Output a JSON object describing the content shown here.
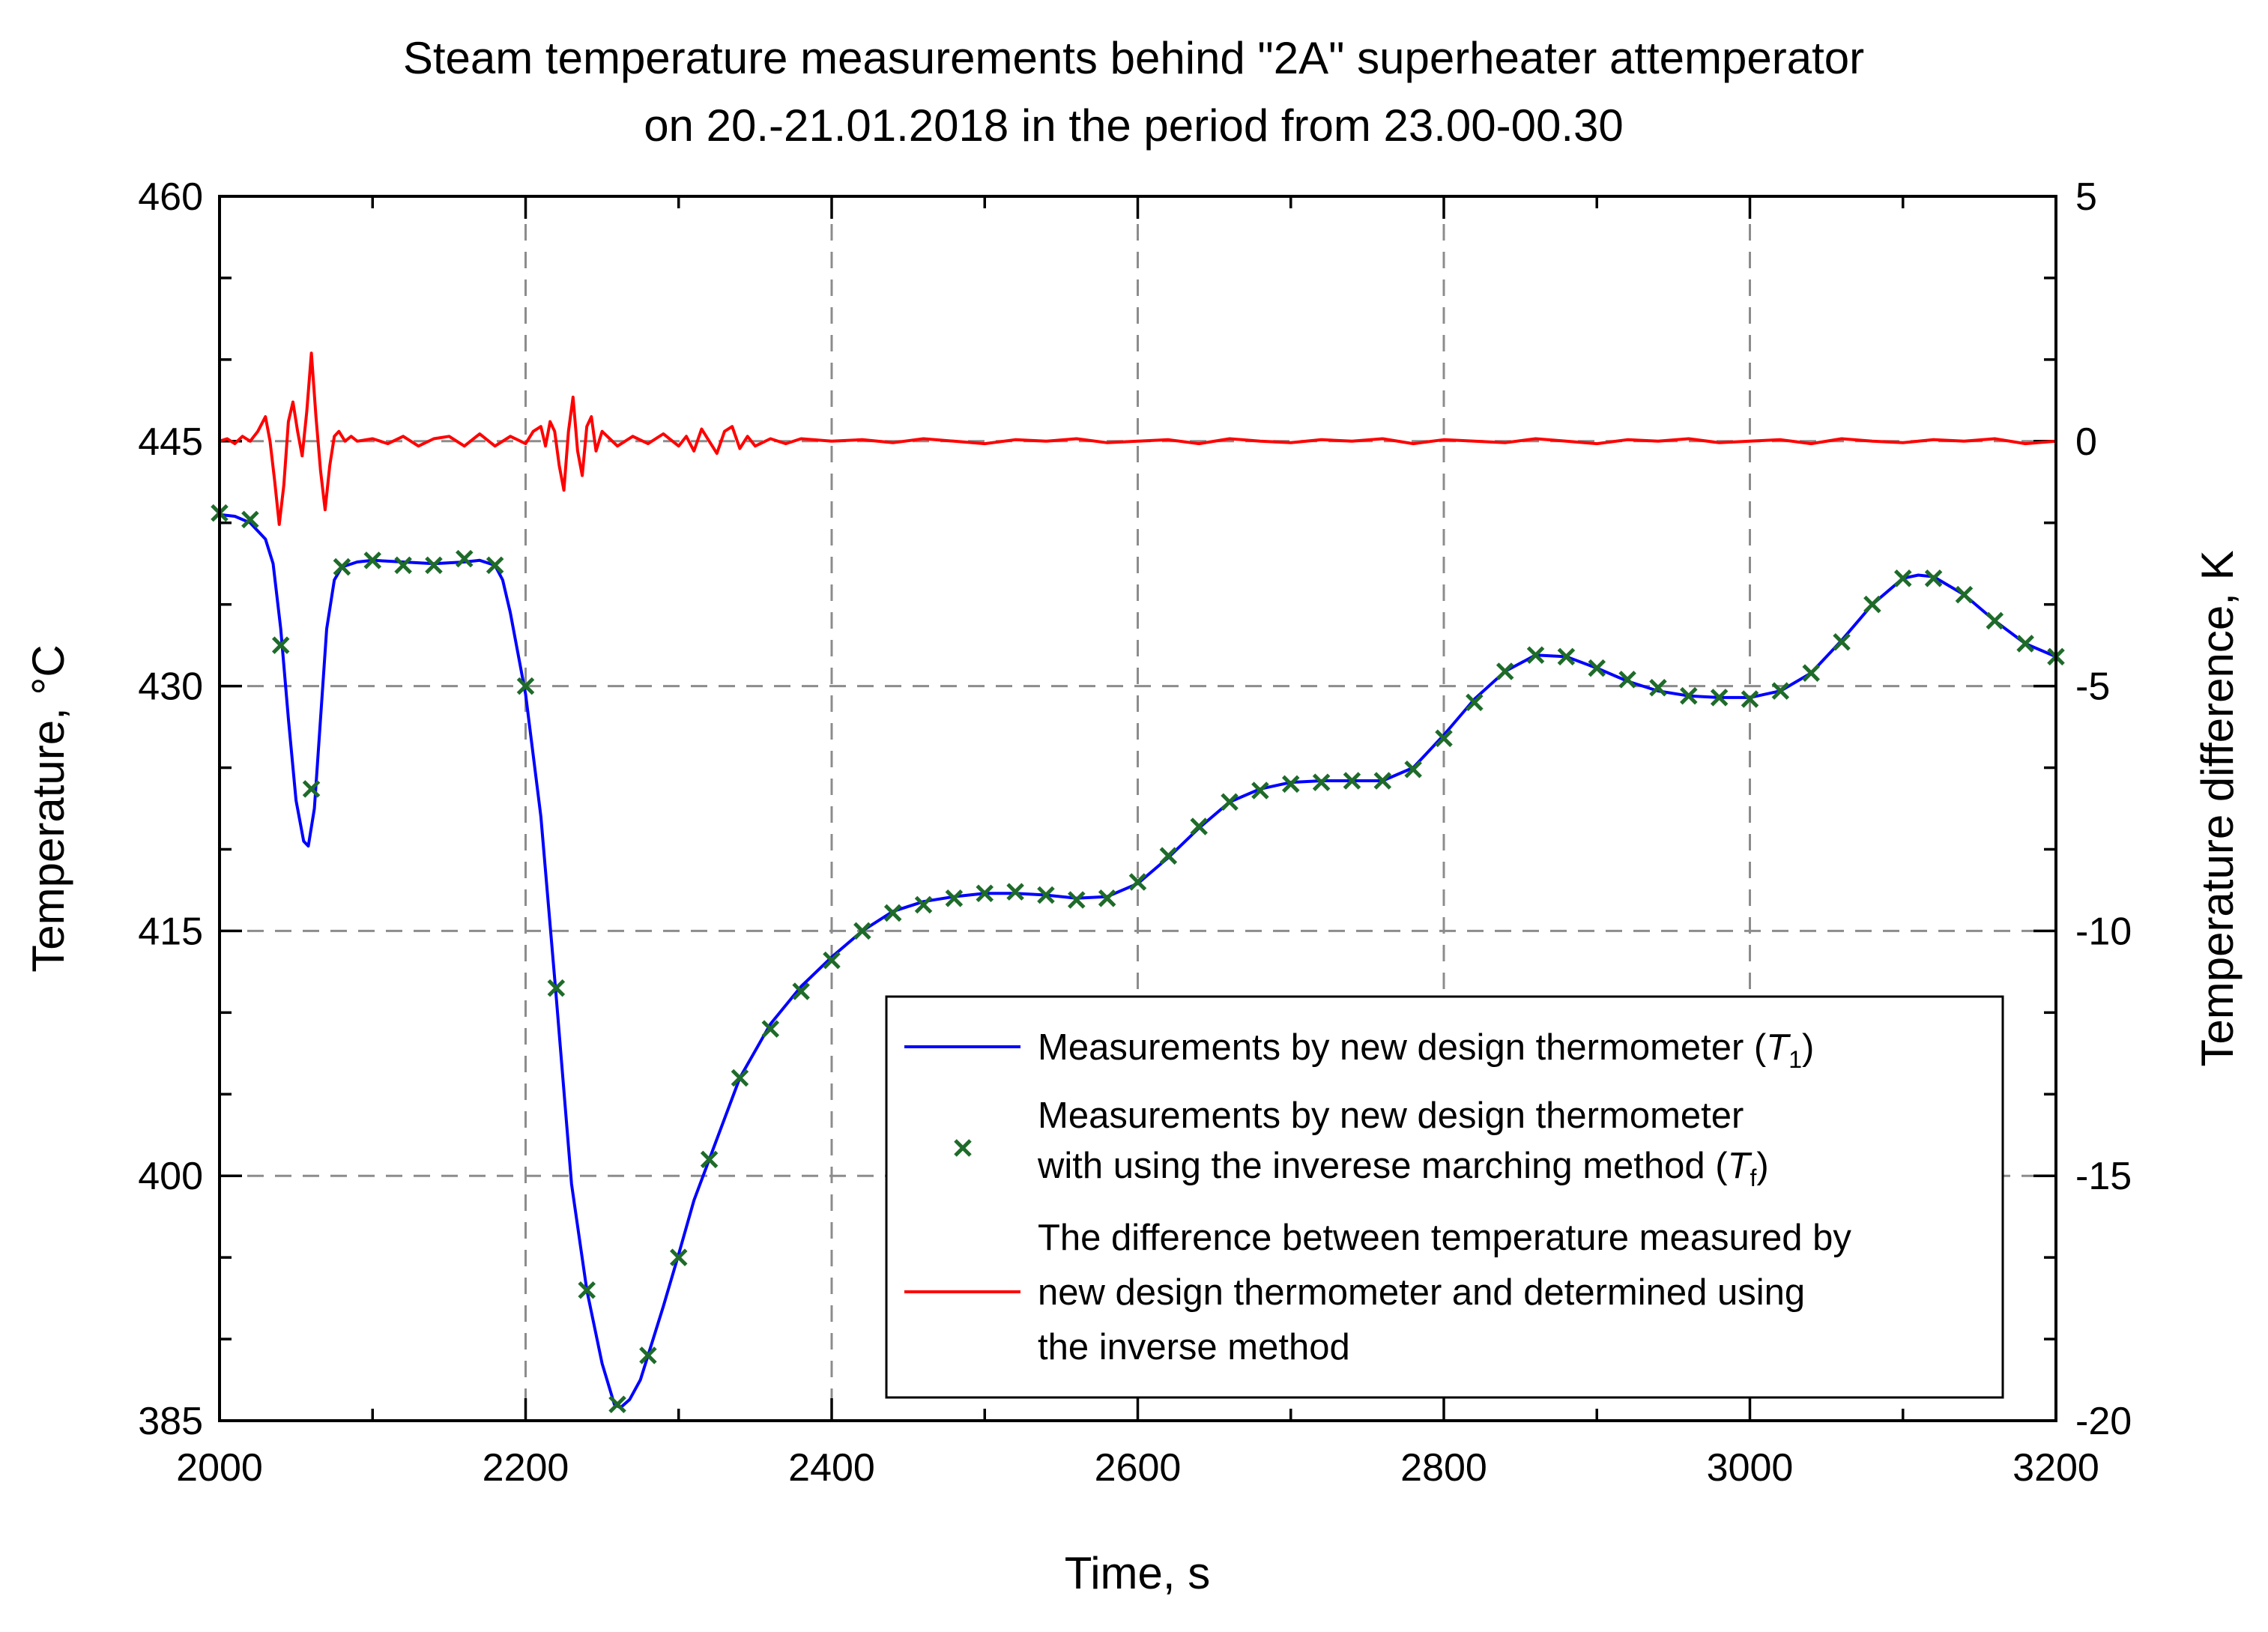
{
  "colors": {
    "t1_line": "#0000ff",
    "tf_marker": "#1f6b2a",
    "diff_line": "#ff0000",
    "grid": "#8c8c8c",
    "axis": "#000000"
  },
  "chart_data": {
    "type": "line",
    "title": [
      "Steam temperature measurements behind \"2A\" superheater attemperator",
      "on 20.-21.01.2018 in the period from 23.00-00.30"
    ],
    "xlabel": "Time, s",
    "ylabel_left": "Temperature, °C",
    "ylabel_right": "Temperature difference, K",
    "xlim": [
      2000,
      3200
    ],
    "ylim_left": [
      385,
      460
    ],
    "ylim_right": [
      -20,
      5
    ],
    "xticks": [
      2000,
      2200,
      2400,
      2600,
      2800,
      3000,
      3200
    ],
    "yticks_left": [
      385,
      400,
      415,
      430,
      445,
      460
    ],
    "yticks_right": [
      -20,
      -15,
      -10,
      -5,
      0,
      5
    ],
    "grid": "dashed",
    "legend_position": "lower-right",
    "legend": [
      {
        "label": "Measurements by new design thermometer (",
        "symbol": "T",
        "subscript": "1",
        "suffix": ")"
      },
      {
        "label_lines": [
          "Measurements by new design thermometer",
          "with using the inverese marching method ("
        ],
        "symbol": "T",
        "subscript": "f",
        "suffix": ")"
      },
      {
        "label_lines": [
          "The difference between temperature measured by",
          "new design thermometer and determined using",
          "the inverse method"
        ]
      }
    ],
    "series": [
      {
        "name": "T1",
        "kind": "line",
        "axis": "left",
        "x": [
          2000,
          2010,
          2020,
          2030,
          2035,
          2040,
          2045,
          2050,
          2055,
          2058,
          2062,
          2066,
          2070,
          2075,
          2080,
          2090,
          2100,
          2120,
          2140,
          2160,
          2170,
          2180,
          2185,
          2190,
          2195,
          2200,
          2210,
          2220,
          2230,
          2240,
          2250,
          2258,
          2262,
          2268,
          2275,
          2280,
          2290,
          2300,
          2310,
          2320,
          2330,
          2340,
          2360,
          2380,
          2400,
          2420,
          2440,
          2460,
          2480,
          2500,
          2520,
          2540,
          2560,
          2580,
          2600,
          2620,
          2640,
          2660,
          2680,
          2700,
          2720,
          2740,
          2760,
          2780,
          2800,
          2820,
          2840,
          2860,
          2880,
          2900,
          2920,
          2940,
          2960,
          2980,
          3000,
          3020,
          3040,
          3060,
          3080,
          3100,
          3110,
          3120,
          3140,
          3160,
          3180,
          3200
        ],
        "y": [
          440.5,
          440.4,
          440.0,
          439.0,
          437.5,
          433.5,
          428.0,
          423.0,
          420.5,
          420.2,
          422.5,
          428.0,
          433.5,
          436.5,
          437.3,
          437.6,
          437.7,
          437.6,
          437.5,
          437.6,
          437.7,
          437.4,
          436.5,
          434.5,
          432.0,
          429.5,
          422.0,
          411.0,
          399.5,
          393.0,
          388.5,
          386.0,
          385.8,
          386.3,
          387.5,
          389.0,
          392.0,
          395.2,
          398.5,
          401.0,
          403.5,
          406.0,
          409.3,
          411.6,
          413.4,
          415.0,
          416.2,
          416.8,
          417.1,
          417.3,
          417.3,
          417.2,
          417.0,
          417.1,
          417.9,
          419.5,
          421.3,
          422.9,
          423.7,
          424.1,
          424.2,
          424.2,
          424.2,
          425.0,
          427.0,
          429.2,
          430.9,
          431.9,
          431.8,
          431.1,
          430.3,
          429.7,
          429.4,
          429.3,
          429.3,
          429.7,
          430.8,
          432.8,
          435.0,
          436.6,
          436.8,
          436.7,
          435.6,
          434.0,
          432.6,
          431.8
        ]
      },
      {
        "name": "Tf",
        "kind": "scatter",
        "marker": "x",
        "axis": "left",
        "x": [
          2000,
          2020,
          2040,
          2060,
          2080,
          2100,
          2120,
          2140,
          2160,
          2180,
          2200,
          2220,
          2240,
          2260,
          2280,
          2300,
          2320,
          2340,
          2360,
          2380,
          2400,
          2420,
          2440,
          2460,
          2480,
          2500,
          2520,
          2540,
          2560,
          2580,
          2600,
          2620,
          2640,
          2660,
          2680,
          2700,
          2720,
          2740,
          2760,
          2780,
          2800,
          2820,
          2840,
          2860,
          2880,
          2900,
          2920,
          2940,
          2960,
          2980,
          3000,
          3020,
          3040,
          3060,
          3080,
          3100,
          3120,
          3140,
          3160,
          3180,
          3200
        ],
        "y": [
          440.6,
          440.2,
          432.5,
          423.7,
          437.3,
          437.7,
          437.4,
          437.4,
          437.8,
          437.4,
          430.0,
          411.5,
          393.0,
          386.0,
          389.0,
          395.0,
          401.0,
          406.0,
          409.0,
          411.3,
          413.2,
          415.0,
          416.1,
          416.6,
          417.0,
          417.3,
          417.4,
          417.2,
          416.9,
          417.0,
          418.0,
          419.6,
          421.4,
          422.9,
          423.6,
          424.0,
          424.1,
          424.2,
          424.2,
          424.9,
          426.8,
          429.0,
          430.9,
          431.9,
          431.8,
          431.1,
          430.4,
          429.9,
          429.4,
          429.3,
          429.2,
          429.7,
          430.8,
          432.7,
          435.0,
          436.6,
          436.6,
          435.6,
          434.0,
          432.6,
          431.8
        ]
      },
      {
        "name": "Difference",
        "kind": "line",
        "axis": "right",
        "x": [
          2000,
          2005,
          2010,
          2015,
          2020,
          2025,
          2030,
          2033,
          2036,
          2039,
          2042,
          2045,
          2048,
          2051,
          2054,
          2057,
          2060,
          2063,
          2066,
          2069,
          2072,
          2075,
          2078,
          2082,
          2086,
          2090,
          2100,
          2110,
          2120,
          2130,
          2140,
          2150,
          2160,
          2170,
          2180,
          2190,
          2200,
          2205,
          2210,
          2213,
          2216,
          2219,
          2222,
          2225,
          2228,
          2231,
          2234,
          2237,
          2240,
          2243,
          2246,
          2250,
          2255,
          2260,
          2270,
          2280,
          2290,
          2300,
          2305,
          2310,
          2315,
          2320,
          2325,
          2330,
          2335,
          2340,
          2345,
          2350,
          2360,
          2370,
          2380,
          2400,
          2420,
          2440,
          2460,
          2480,
          2500,
          2520,
          2540,
          2560,
          2580,
          2600,
          2620,
          2640,
          2660,
          2680,
          2700,
          2720,
          2740,
          2760,
          2780,
          2800,
          2820,
          2840,
          2860,
          2880,
          2900,
          2920,
          2940,
          2960,
          2980,
          3000,
          3020,
          3040,
          3060,
          3080,
          3100,
          3120,
          3140,
          3160,
          3180,
          3200
        ],
        "y": [
          0.0,
          0.05,
          -0.05,
          0.1,
          0.0,
          0.2,
          0.5,
          0.0,
          -0.8,
          -1.7,
          -0.9,
          0.4,
          0.8,
          0.2,
          -0.3,
          0.6,
          1.8,
          0.5,
          -0.6,
          -1.4,
          -0.5,
          0.1,
          0.2,
          0.0,
          0.1,
          0.0,
          0.05,
          -0.05,
          0.1,
          -0.1,
          0.05,
          0.1,
          -0.1,
          0.15,
          -0.1,
          0.1,
          -0.05,
          0.2,
          0.3,
          -0.1,
          0.4,
          0.2,
          -0.5,
          -1.0,
          0.2,
          0.9,
          -0.2,
          -0.7,
          0.3,
          0.5,
          -0.2,
          0.2,
          0.05,
          -0.1,
          0.1,
          -0.05,
          0.15,
          -0.1,
          0.1,
          -0.2,
          0.25,
          0.0,
          -0.25,
          0.2,
          0.3,
          -0.15,
          0.1,
          -0.1,
          0.05,
          -0.05,
          0.05,
          0.0,
          0.03,
          -0.03,
          0.05,
          0.0,
          -0.05,
          0.03,
          0.0,
          0.05,
          -0.03,
          0.0,
          0.03,
          -0.05,
          0.05,
          0.0,
          -0.03,
          0.03,
          0.0,
          0.05,
          -0.05,
          0.03,
          0.0,
          -0.03,
          0.05,
          0.0,
          -0.05,
          0.03,
          0.0,
          0.05,
          -0.03,
          0.0,
          0.03,
          -0.05,
          0.05,
          0.0,
          -0.03,
          0.03,
          0.0,
          0.05,
          -0.05,
          0.0
        ]
      }
    ]
  }
}
